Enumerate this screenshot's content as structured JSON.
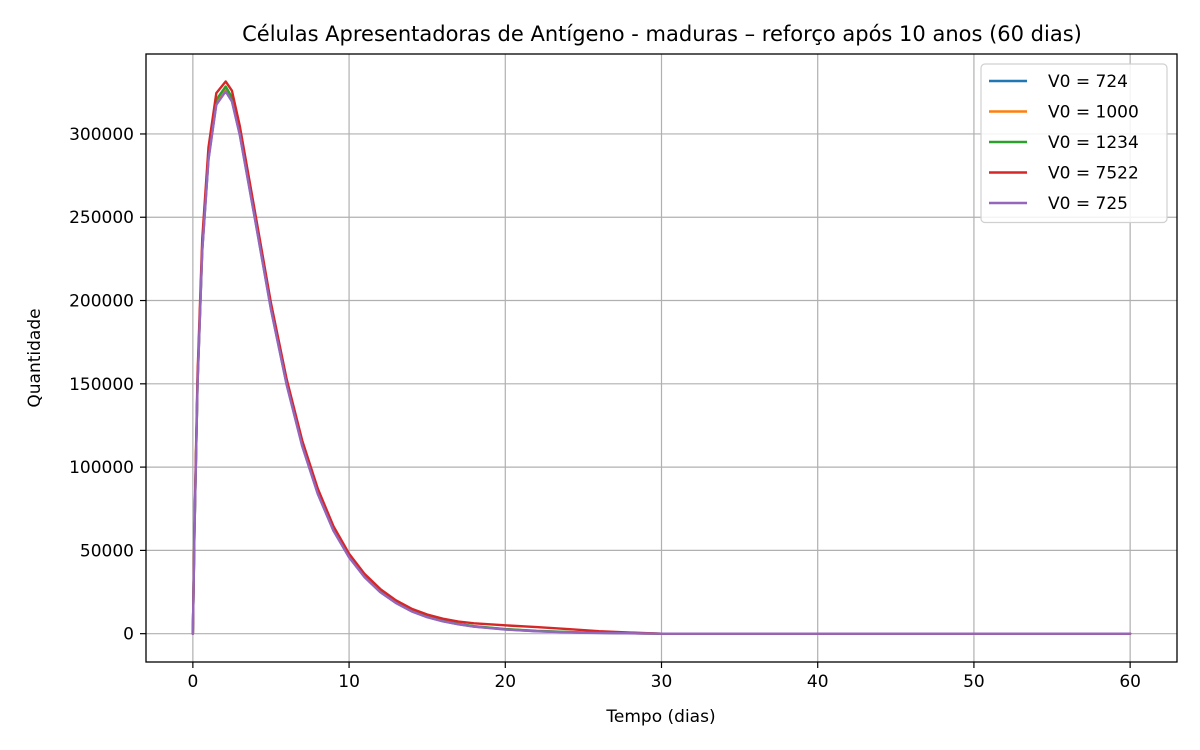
{
  "chart_data": {
    "type": "line",
    "title": "Células Apresentadoras de Antígeno - maduras – reforço após 10 anos (60 dias)",
    "xlabel": "Tempo (dias)",
    "ylabel": "Quantidade",
    "xlim": [
      -3,
      63
    ],
    "ylim": [
      -17000,
      348000
    ],
    "xticks": [
      0,
      10,
      20,
      30,
      40,
      50,
      60
    ],
    "xtick_labels": [
      "0",
      "10",
      "20",
      "30",
      "40",
      "50",
      "60"
    ],
    "yticks": [
      0,
      50000,
      100000,
      150000,
      200000,
      250000,
      300000
    ],
    "ytick_labels": [
      "0",
      "50000",
      "100000",
      "150000",
      "200000",
      "250000",
      "300000"
    ],
    "grid": true,
    "legend_position": "top-right",
    "series": [
      {
        "name": "V0 = 724",
        "color": "#1f77b4",
        "points": [
          [
            0,
            0
          ],
          [
            0.1,
            60000
          ],
          [
            0.3,
            150000
          ],
          [
            0.6,
            230000
          ],
          [
            1.0,
            285000
          ],
          [
            1.5,
            318000
          ],
          [
            2.1,
            326000
          ],
          [
            2.5,
            320000
          ],
          [
            3,
            300000
          ],
          [
            4,
            248000
          ],
          [
            5,
            195000
          ],
          [
            6,
            150000
          ],
          [
            7,
            113000
          ],
          [
            8,
            84000
          ],
          [
            9,
            62000
          ],
          [
            10,
            46000
          ],
          [
            11,
            34000
          ],
          [
            12,
            25000
          ],
          [
            13,
            18500
          ],
          [
            14,
            13500
          ],
          [
            15,
            10000
          ],
          [
            16,
            7500
          ],
          [
            17,
            5700
          ],
          [
            18,
            4300
          ],
          [
            20,
            2600
          ],
          [
            22,
            1500
          ],
          [
            25,
            600
          ],
          [
            30,
            0
          ],
          [
            40,
            0
          ],
          [
            50,
            0
          ],
          [
            60,
            0
          ]
        ]
      },
      {
        "name": "V0 = 1000",
        "color": "#ff7f0e",
        "points": [
          [
            0,
            0
          ],
          [
            0.1,
            60500
          ],
          [
            0.3,
            151000
          ],
          [
            0.6,
            231000
          ],
          [
            1.0,
            286500
          ],
          [
            1.5,
            319500
          ],
          [
            2.1,
            327500
          ],
          [
            2.5,
            321000
          ],
          [
            3,
            301000
          ],
          [
            4,
            249000
          ],
          [
            5,
            196000
          ],
          [
            6,
            150500
          ],
          [
            7,
            113500
          ],
          [
            8,
            84500
          ],
          [
            9,
            62300
          ],
          [
            10,
            46200
          ],
          [
            11,
            34100
          ],
          [
            12,
            25100
          ],
          [
            13,
            18600
          ],
          [
            14,
            13600
          ],
          [
            15,
            10100
          ],
          [
            16,
            7600
          ],
          [
            17,
            5800
          ],
          [
            18,
            4400
          ],
          [
            20,
            2700
          ],
          [
            22,
            1600
          ],
          [
            25,
            650
          ],
          [
            30,
            0
          ],
          [
            40,
            0
          ],
          [
            50,
            0
          ],
          [
            60,
            0
          ]
        ]
      },
      {
        "name": "V0 = 1234",
        "color": "#2ca02c",
        "points": [
          [
            0,
            0
          ],
          [
            0.1,
            61000
          ],
          [
            0.3,
            152000
          ],
          [
            0.6,
            232000
          ],
          [
            1.0,
            287500
          ],
          [
            1.5,
            320500
          ],
          [
            2.1,
            328500
          ],
          [
            2.5,
            322000
          ],
          [
            3,
            302000
          ],
          [
            4,
            249500
          ],
          [
            5,
            196500
          ],
          [
            6,
            151000
          ],
          [
            7,
            114000
          ],
          [
            8,
            85000
          ],
          [
            9,
            62600
          ],
          [
            10,
            46400
          ],
          [
            11,
            34300
          ],
          [
            12,
            25300
          ],
          [
            13,
            18800
          ],
          [
            14,
            13800
          ],
          [
            15,
            10200
          ],
          [
            16,
            7700
          ],
          [
            17,
            5900
          ],
          [
            18,
            4500
          ],
          [
            20,
            2800
          ],
          [
            22,
            1700
          ],
          [
            25,
            700
          ],
          [
            30,
            0
          ],
          [
            40,
            0
          ],
          [
            50,
            0
          ],
          [
            60,
            0
          ]
        ]
      },
      {
        "name": "V0 = 7522",
        "color": "#d62728",
        "points": [
          [
            0,
            0
          ],
          [
            0.1,
            64000
          ],
          [
            0.3,
            156000
          ],
          [
            0.6,
            237000
          ],
          [
            1.0,
            292000
          ],
          [
            1.5,
            324500
          ],
          [
            2.1,
            331500
          ],
          [
            2.5,
            326000
          ],
          [
            3,
            305000
          ],
          [
            4,
            252000
          ],
          [
            5,
            198500
          ],
          [
            6,
            153000
          ],
          [
            7,
            116000
          ],
          [
            8,
            87000
          ],
          [
            9,
            64500
          ],
          [
            10,
            48000
          ],
          [
            11,
            35800
          ],
          [
            12,
            26800
          ],
          [
            13,
            20000
          ],
          [
            14,
            15000
          ],
          [
            15,
            11500
          ],
          [
            16,
            9000
          ],
          [
            17,
            7300
          ],
          [
            18,
            6200
          ],
          [
            20,
            5000
          ],
          [
            22,
            4000
          ],
          [
            24,
            2800
          ],
          [
            26,
            1500
          ],
          [
            28,
            700
          ],
          [
            30,
            0
          ],
          [
            40,
            0
          ],
          [
            50,
            0
          ],
          [
            60,
            0
          ]
        ]
      },
      {
        "name": "V0 = 725",
        "color": "#9467bd",
        "points": [
          [
            0,
            0
          ],
          [
            0.1,
            59800
          ],
          [
            0.3,
            149500
          ],
          [
            0.6,
            229500
          ],
          [
            1.0,
            284500
          ],
          [
            1.5,
            317500
          ],
          [
            2.1,
            325500
          ],
          [
            2.5,
            319500
          ],
          [
            3,
            299500
          ],
          [
            4,
            247500
          ],
          [
            5,
            194500
          ],
          [
            6,
            149500
          ],
          [
            7,
            112500
          ],
          [
            8,
            83800
          ],
          [
            9,
            61800
          ],
          [
            10,
            45800
          ],
          [
            11,
            33800
          ],
          [
            12,
            24900
          ],
          [
            13,
            18400
          ],
          [
            14,
            13400
          ],
          [
            15,
            9900
          ],
          [
            16,
            7400
          ],
          [
            17,
            5600
          ],
          [
            18,
            4200
          ],
          [
            20,
            2500
          ],
          [
            22,
            1400
          ],
          [
            25,
            550
          ],
          [
            30,
            0
          ],
          [
            40,
            0
          ],
          [
            50,
            0
          ],
          [
            60,
            0
          ]
        ]
      }
    ]
  }
}
